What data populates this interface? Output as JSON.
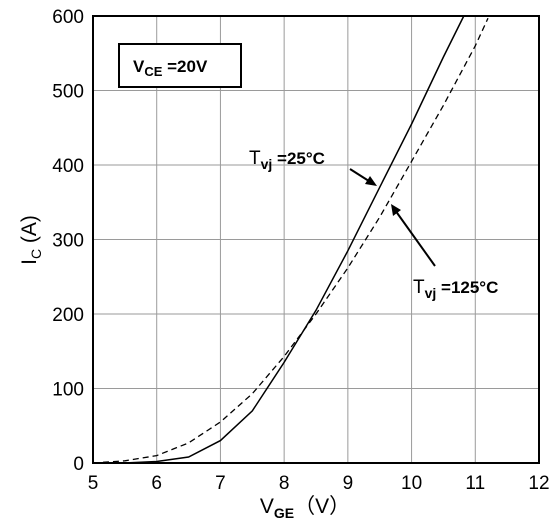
{
  "chart_data": {
    "type": "line",
    "xlabel": {
      "main": "V",
      "sub": "GE",
      "unit": "（V）"
    },
    "ylabel": {
      "main": "I",
      "sub": "C",
      "unit": " (A)"
    },
    "xlim": [
      5,
      12
    ],
    "ylim": [
      0,
      600
    ],
    "xticks": [
      "5",
      "6",
      "7",
      "8",
      "9",
      "10",
      "11",
      "12"
    ],
    "yticks": [
      "0",
      "100",
      "200",
      "300",
      "400",
      "500",
      "600"
    ],
    "grid": true,
    "condition_box": {
      "main": "V",
      "sub": "CE",
      "rest": " =20V"
    },
    "series": [
      {
        "label": {
          "main": "T",
          "sub": "vj",
          "rest": " =25°C"
        },
        "style": "solid",
        "x": [
          5.0,
          5.5,
          6.0,
          6.5,
          7.0,
          7.5,
          8.0,
          8.5,
          9.0,
          9.5,
          10.0,
          10.5,
          10.82
        ],
        "y": [
          0,
          0,
          2,
          8,
          30,
          70,
          135,
          205,
          285,
          370,
          455,
          545,
          600
        ]
      },
      {
        "label": {
          "main": "T",
          "sub": "vj",
          "rest": " =125°C"
        },
        "style": "dashed",
        "x": [
          5.0,
          5.5,
          6.0,
          6.5,
          7.0,
          7.5,
          8.0,
          8.5,
          9.0,
          9.5,
          10.0,
          10.5,
          11.0,
          11.2
        ],
        "y": [
          0,
          3,
          10,
          27,
          55,
          93,
          143,
          200,
          262,
          330,
          405,
          480,
          560,
          597
        ]
      }
    ]
  }
}
